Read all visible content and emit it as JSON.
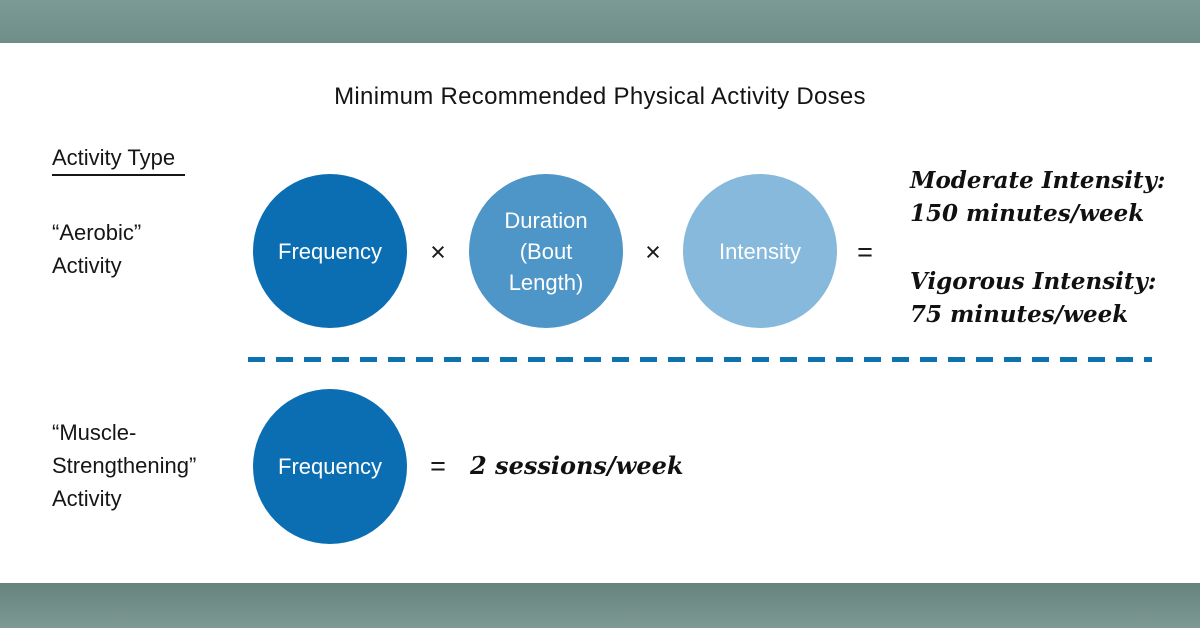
{
  "title": "Minimum Recommended Physical Activity Doses",
  "activity_type_header": "Activity Type",
  "operators": {
    "multiply": "×",
    "equals": "="
  },
  "aerobic": {
    "label": "“Aerobic”\nActivity",
    "frequency_circle": "Frequency",
    "duration_circle": "Duration\n(Bout\nLength)",
    "intensity_circle": "Intensity",
    "moderate_result": "Moderate Intensity:\n150 minutes/week",
    "vigorous_result": "Vigorous Intensity:\n75 minutes/week"
  },
  "muscle": {
    "label": "“Muscle-\nStrengthening”\nActivity",
    "frequency_circle": "Frequency",
    "result": "2 sessions/week"
  },
  "colors": {
    "circle_dark_blue": "#0b6eb3",
    "circle_medium_blue": "#4e95c8",
    "circle_light_blue": "#86b9dc",
    "divider_blue": "#0e72b1",
    "band_sage": "#78938f"
  }
}
